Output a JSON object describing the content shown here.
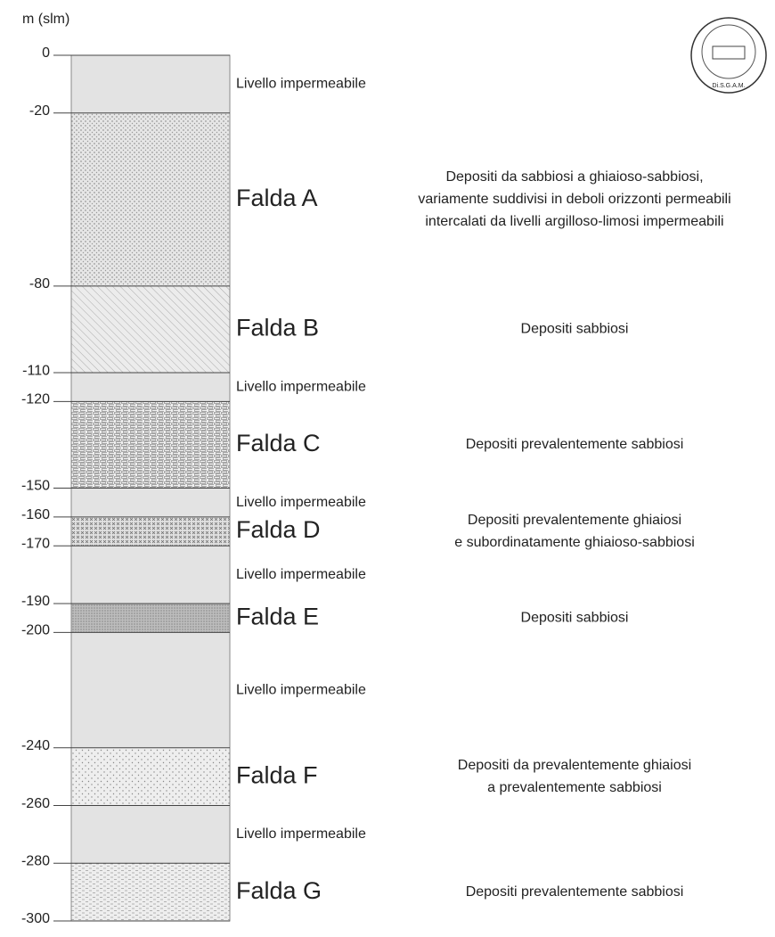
{
  "axis_label": "m (slm)",
  "ylim": [
    0,
    -300
  ],
  "ticks": [
    0,
    -20,
    -80,
    -110,
    -120,
    -150,
    -160,
    -170,
    -190,
    -200,
    -240,
    -260,
    -280,
    -300
  ],
  "logo_text": "Di.S.G.A.M.",
  "layers": [
    {
      "top": 0,
      "bottom": -20,
      "pattern": "plain",
      "label": "Livello impermeabile"
    },
    {
      "top": -20,
      "bottom": -80,
      "pattern": "dots",
      "label": "Falda A",
      "description": [
        "Depositi da sabbiosi a ghiaioso-sabbiosi,",
        "variamente suddivisi in deboli orizzonti permeabili",
        "intercalati da livelli argilloso-limosi impermeabili"
      ]
    },
    {
      "top": -80,
      "bottom": -110,
      "pattern": "hatch",
      "label": "Falda B",
      "description": [
        "Depositi sabbiosi"
      ]
    },
    {
      "top": -110,
      "bottom": -120,
      "pattern": "plain",
      "label": "Livello impermeabile"
    },
    {
      "top": -120,
      "bottom": -150,
      "pattern": "bricks",
      "label": "Falda C",
      "description": [
        "Depositi prevalentemente sabbiosi"
      ]
    },
    {
      "top": -150,
      "bottom": -160,
      "pattern": "plain",
      "label": "Livello impermeabile"
    },
    {
      "top": -160,
      "bottom": -170,
      "pattern": "cross",
      "label": "Falda D",
      "description": [
        "Depositi prevalentemente ghiaiosi",
        "e subordinatamente ghiaioso-sabbiosi"
      ]
    },
    {
      "top": -170,
      "bottom": -190,
      "pattern": "plain",
      "label": "Livello impermeabile"
    },
    {
      "top": -190,
      "bottom": -200,
      "pattern": "dense",
      "label": "Falda E",
      "description": [
        "Depositi sabbiosi"
      ]
    },
    {
      "top": -200,
      "bottom": -240,
      "pattern": "plain",
      "label": "Livello impermeabile"
    },
    {
      "top": -240,
      "bottom": -260,
      "pattern": "sparse",
      "label": "Falda F",
      "description": [
        "Depositi da prevalentemente ghiaiosi",
        "a prevalentemente sabbiosi"
      ]
    },
    {
      "top": -260,
      "bottom": -280,
      "pattern": "plain",
      "label": "Livello impermeabile"
    },
    {
      "top": -280,
      "bottom": -300,
      "pattern": "dashes",
      "label": "Falda G",
      "description": [
        "Depositi prevalentemente sabbiosi"
      ]
    }
  ]
}
